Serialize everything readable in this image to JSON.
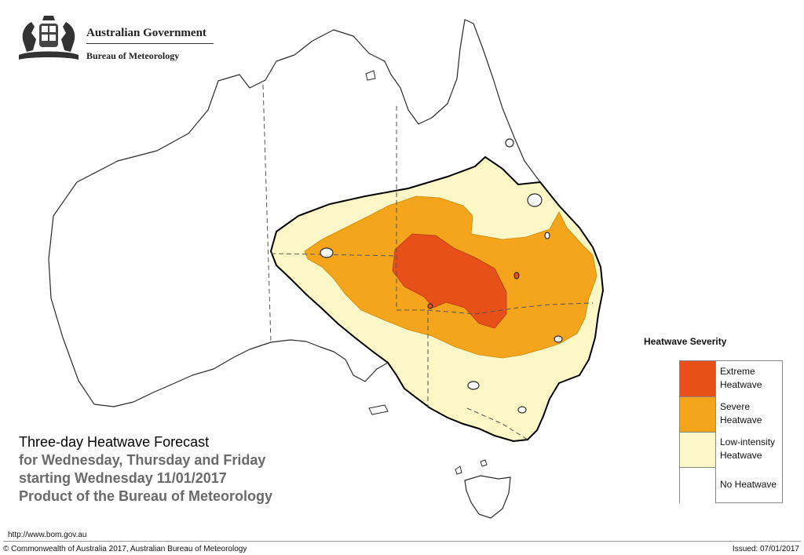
{
  "header": {
    "government": "Australian Government",
    "bureau": "Bureau of Meteorology"
  },
  "caption": {
    "title": "Three-day Heatwave Forecast",
    "line2": "for Wednesday, Thursday and Friday",
    "line3": "starting Wednesday 11/01/2017",
    "line4": "Product of the Bureau of Meteorology"
  },
  "legend": {
    "title": "Heatwave Severity",
    "items": [
      {
        "label_1": "Extreme",
        "label_2": "Heatwave",
        "color": "#e8501a"
      },
      {
        "label_1": "Severe",
        "label_2": "Heatwave",
        "color": "#f5a51c"
      },
      {
        "label_1": "Low-intensity",
        "label_2": "Heatwave",
        "color": "#fbf7c6"
      },
      {
        "label_1": "No Heatwave",
        "label_2": "",
        "color": "#ffffff"
      }
    ]
  },
  "colors": {
    "extreme": "#e8501a",
    "severe": "#f5a51c",
    "low": "#fbf7c6",
    "none": "#ffffff",
    "coast": "#2b2b2b",
    "border": "#555555"
  },
  "footer": {
    "url": "http://www.bom.gov.au",
    "copyright": "© Commonwealth of Australia 2017, Australian Bureau of Meteorology",
    "issued": "Issued: 07/01/2017"
  }
}
